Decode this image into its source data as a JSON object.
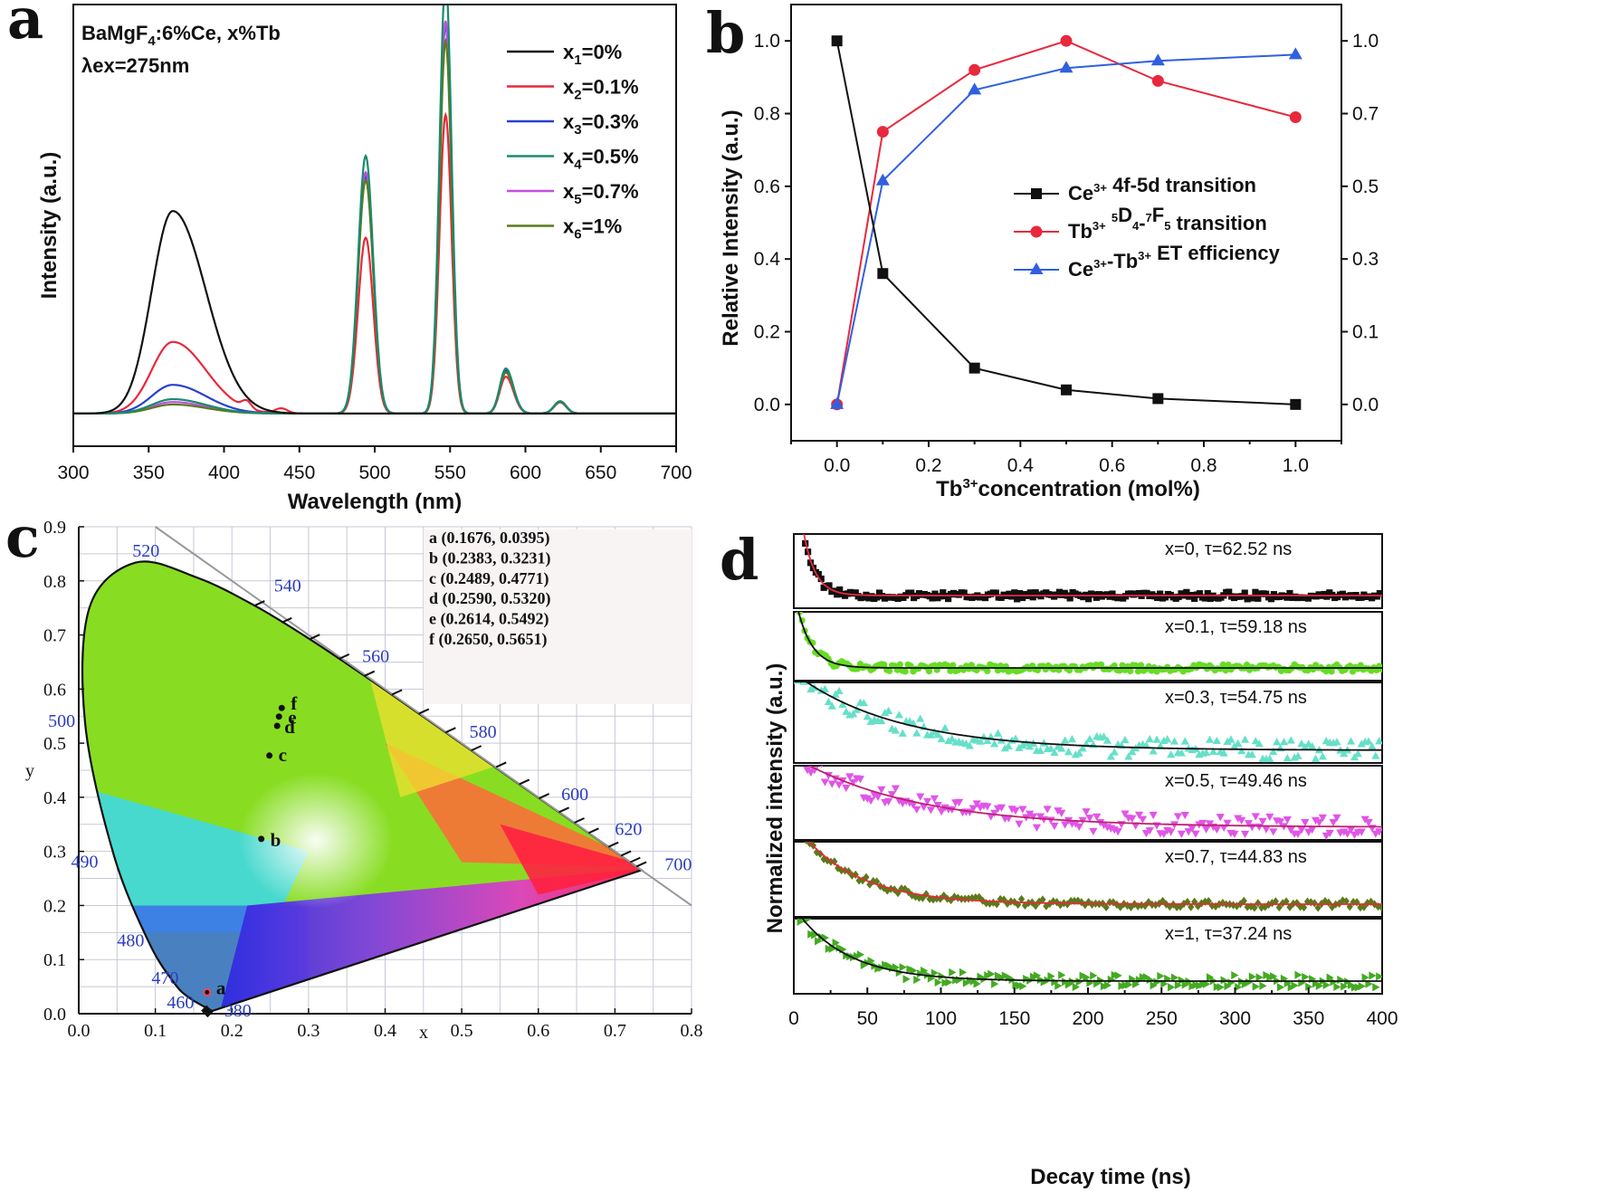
{
  "chart_data": [
    {
      "id": "a",
      "panel_label": "a",
      "type": "line",
      "title_lines": [
        "BaMgF",
        "4",
        ":6%Ce, x%Tb"
      ],
      "subtitle": "λex=275nm",
      "xlabel": "Wavelength (nm)",
      "ylabel": "Intensity (a.u.)",
      "xlim": [
        300,
        700
      ],
      "xticks": [
        300,
        350,
        400,
        450,
        500,
        550,
        600,
        650,
        700
      ],
      "ylim": [
        -0.08,
        1.0
      ],
      "legend_position": "top-right",
      "peaks_nm": [
        366,
        494,
        547,
        587,
        623
      ],
      "series": [
        {
          "name_base": "x",
          "name_sub": "1",
          "name_value": "=0%",
          "color": "#111111",
          "peaks": [
            0.495,
            0,
            0,
            0,
            0
          ]
        },
        {
          "name_base": "x",
          "name_sub": "2",
          "name_value": "=0.1%",
          "color": "#e8283c",
          "peaks": [
            0.175,
            0.43,
            0.73,
            0.09,
            0.027
          ]
        },
        {
          "name_base": "x",
          "name_sub": "3",
          "name_value": "=0.3%",
          "color": "#2a3fcf",
          "peaks": [
            0.07,
            0.58,
            0.95,
            0.105,
            0.03
          ]
        },
        {
          "name_base": "x",
          "name_sub": "4",
          "name_value": "=0.5%",
          "color": "#1a8a6e",
          "peaks": [
            0.035,
            0.63,
            1.065,
            0.11,
            0.03
          ]
        },
        {
          "name_base": "x",
          "name_sub": "5",
          "name_value": "=0.7%",
          "color": "#c050e0",
          "peaks": [
            0.028,
            0.59,
            0.96,
            0.1,
            0.03
          ]
        },
        {
          "name_base": "x",
          "name_sub": "6",
          "name_value": "=1%",
          "color": "#5a7a1a",
          "peaks": [
            0.022,
            0.57,
            0.91,
            0.1,
            0.028
          ]
        }
      ]
    },
    {
      "id": "b",
      "panel_label": "b",
      "type": "line",
      "xlabel_base": "Tb",
      "xlabel_sup": "3+",
      "xlabel_rest": "concentration (mol%)",
      "ylabel": "Relative Intensity (a.u.)",
      "xlim": [
        -0.1,
        1.1
      ],
      "xticks": [
        "0.0",
        "0.2",
        "0.4",
        "0.6",
        "0.8",
        "1.0"
      ],
      "ylim": [
        -0.1,
        1.1
      ],
      "yticks": [
        "0.0",
        "0.2",
        "0.4",
        "0.6",
        "0.8",
        "1.0"
      ],
      "right_yticks": [
        "0.0",
        "0.1",
        "0.3",
        "0.5",
        "0.7",
        "1.0"
      ],
      "legend_position": "center-right",
      "x": [
        0,
        0.1,
        0.3,
        0.5,
        0.7,
        1.0
      ],
      "series": [
        {
          "label_parts": [
            [
              "Ce",
              ""
            ],
            [
              "3+",
              "sup"
            ],
            [
              " 4f-5d transition",
              ""
            ]
          ],
          "color": "#111111",
          "marker": "square",
          "values": [
            1.0,
            0.36,
            0.1,
            0.04,
            0.016,
            0.0
          ]
        },
        {
          "label_parts": [
            [
              "Tb",
              ""
            ],
            [
              "3+",
              "sup"
            ],
            [
              "  ",
              ""
            ],
            [
              "5",
              "sup"
            ],
            [
              "D",
              ""
            ],
            [
              "4",
              "sub"
            ],
            [
              "-",
              ""
            ],
            [
              "7",
              "sup"
            ],
            [
              "F",
              ""
            ],
            [
              "5",
              "sub"
            ],
            [
              " transition",
              ""
            ]
          ],
          "color": "#e8283c",
          "marker": "circle",
          "values": [
            0.0,
            0.75,
            0.92,
            1.0,
            0.89,
            0.79
          ]
        },
        {
          "label_parts": [
            [
              "Ce",
              ""
            ],
            [
              "3+",
              "sup"
            ],
            [
              "-Tb",
              ""
            ],
            [
              "3+",
              "sup"
            ],
            [
              " ET efficiency",
              ""
            ]
          ],
          "color": "#3060e0",
          "marker": "triangle",
          "values": [
            0.0,
            0.615,
            0.865,
            0.925,
            0.945,
            0.962
          ]
        }
      ]
    },
    {
      "id": "c",
      "panel_label": "c",
      "type": "scatter",
      "xlabel": "x",
      "ylabel": "y",
      "xlim": [
        0.0,
        0.8
      ],
      "ylim": [
        0.0,
        0.9
      ],
      "xticks": [
        "0.0",
        "0.1",
        "0.2",
        "0.3",
        "0.4",
        "0.5",
        "0.6",
        "0.7",
        "0.8"
      ],
      "yticks": [
        "0.0",
        "0.1",
        "0.2",
        "0.3",
        "0.4",
        "0.5",
        "0.6",
        "0.7",
        "0.8",
        "0.9"
      ],
      "wavelength_labels": [
        {
          "text": "520",
          "x": 0.07,
          "y": 0.845
        },
        {
          "text": "540",
          "x": 0.255,
          "y": 0.78
        },
        {
          "text": "560",
          "x": 0.37,
          "y": 0.65
        },
        {
          "text": "580",
          "x": 0.51,
          "y": 0.51
        },
        {
          "text": "600",
          "x": 0.63,
          "y": 0.395
        },
        {
          "text": "620",
          "x": 0.7,
          "y": 0.33
        },
        {
          "text": "700",
          "x": 0.765,
          "y": 0.265
        },
        {
          "text": "500",
          "x": -0.04,
          "y": 0.53
        },
        {
          "text": "490",
          "x": -0.01,
          "y": 0.27
        },
        {
          "text": "480",
          "x": 0.05,
          "y": 0.125
        },
        {
          "text": "470",
          "x": 0.095,
          "y": 0.055
        },
        {
          "text": "460",
          "x": 0.115,
          "y": 0.01
        },
        {
          "text": "380",
          "x": 0.19,
          "y": -0.005
        }
      ],
      "points": [
        {
          "label": "a",
          "x": 0.1676,
          "y": 0.0395,
          "text": "a (0.1676, 0.0395)"
        },
        {
          "label": "b",
          "x": 0.2383,
          "y": 0.3231,
          "text": "b (0.2383, 0.3231)"
        },
        {
          "label": "c",
          "x": 0.2489,
          "y": 0.4771,
          "text": "c (0.2489, 0.4771)"
        },
        {
          "label": "d",
          "x": 0.259,
          "y": 0.532,
          "text": "d (0.2590, 0.5320)"
        },
        {
          "label": "e",
          "x": 0.2614,
          "y": 0.5492,
          "text": "e (0.2614, 0.5492)"
        },
        {
          "label": "f",
          "x": 0.265,
          "y": 0.5651,
          "text": "f (0.2650, 0.5651)"
        }
      ]
    },
    {
      "id": "d",
      "panel_label": "d",
      "type": "scatter",
      "xlabel": "Decay time (ns)",
      "ylabel": "Normalized intensity (a.u.)",
      "xlim": [
        0,
        400
      ],
      "xticks": [
        "0",
        "50",
        "100",
        "150",
        "200",
        "250",
        "300",
        "350",
        "400"
      ],
      "fit_color": "#e8283c",
      "series": [
        {
          "label": "x=0,    τ=62.52 ns",
          "tau": 62.52,
          "point_color": "#111111",
          "fit_color": "#e8283c",
          "decay": 8,
          "marker": "square"
        },
        {
          "label": "x=0.1,    τ=59.18 ns",
          "tau": 59.18,
          "point_color": "#66dd22",
          "fit_color": "#111111",
          "decay": 10,
          "marker": "circle"
        },
        {
          "label": "x=0.3,    τ=54.75 ns",
          "tau": 54.75,
          "point_color": "#66e0c8",
          "fit_color": "#111111",
          "decay": 70,
          "marker": "triangle"
        },
        {
          "label": "x=0.5,    τ=49.46 ns",
          "tau": 49.46,
          "point_color": "#e055e8",
          "fit_color": "#c02070",
          "decay": 80,
          "marker": "tridown"
        },
        {
          "label": "x=0.7,    τ=44.83 ns",
          "tau": 44.83,
          "point_color": "#5a7a1a",
          "fit_color": "#e8283c",
          "decay": 40,
          "marker": "diamond"
        },
        {
          "label": "x=1,    τ=37.24 ns",
          "tau": 37.24,
          "point_color": "#44aa22",
          "fit_color": "#111111",
          "decay": 35,
          "marker": "triright"
        }
      ]
    }
  ]
}
